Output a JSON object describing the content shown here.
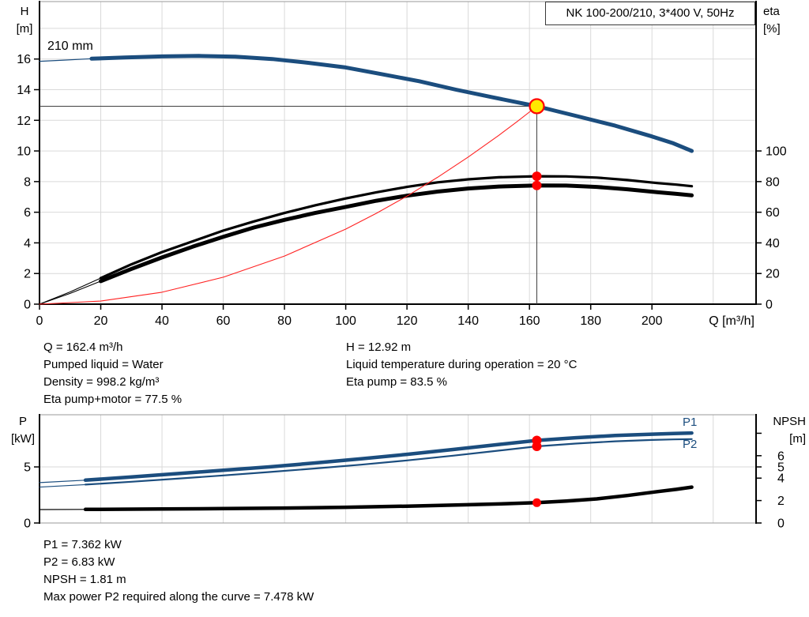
{
  "title_box": {
    "text": "NK 100-200/210, 3*400 V, 50Hz"
  },
  "colors": {
    "blue": "#1b4d7e",
    "black": "#000000",
    "red": "#ff2222",
    "marker_red": "#ff0000",
    "marker_yellow": "#ffe800",
    "grid": "#d9d9d9",
    "frame": "#999999",
    "axis": "#000000",
    "crosshair": "#3f3f3f"
  },
  "axis_titles": {
    "top_left": [
      "H",
      "[m]"
    ],
    "top_right": [
      "eta",
      "[%]"
    ],
    "bottom_left": [
      "P",
      "[kW]"
    ],
    "bottom_right": [
      "NPSH",
      "[m]"
    ]
  },
  "curve_labels": {
    "impeller": "210 mm",
    "p1": "P1",
    "p2": "P2"
  },
  "info_top": {
    "col1": [
      "Q = 162.4 m³/h",
      "Pumped liquid = Water",
      "Density = 998.2 kg/m³",
      "Eta pump+motor = 77.5 %"
    ],
    "col2": [
      "H = 12.92 m",
      "Liquid temperature during operation = 20 °C",
      "Eta pump = 83.5 %"
    ]
  },
  "info_bottom": [
    "P1 = 7.362 kW",
    "P2 = 6.83 kW",
    "NPSH = 1.81 m",
    "Max power P2 required along the curve = 7.478 kW"
  ],
  "chart_data": [
    {
      "name": "qh-eta-chart",
      "type": "line",
      "title": "NK 100-200/210, 3*400 V, 50Hz",
      "xlabel": "Q [m³/h]",
      "ylabel_left": "H [m]",
      "ylabel_right": "eta [%]",
      "xlim": [
        0,
        234
      ],
      "ylim_left": [
        0,
        19.75
      ],
      "ylim_right": [
        0,
        197.5
      ],
      "x_ticks": [
        0,
        20,
        40,
        60,
        80,
        100,
        120,
        140,
        160,
        180,
        200
      ],
      "x_grid": [
        20,
        40,
        60,
        80,
        100,
        120,
        140,
        160,
        180,
        200,
        220
      ],
      "y_ticks_left": [
        0,
        2,
        4,
        6,
        8,
        10,
        12,
        14,
        16
      ],
      "y_ticks_right": [
        0,
        20,
        40,
        60,
        80,
        100
      ],
      "y_tick_right_labels": [
        "0",
        "20",
        "40",
        "60",
        "80",
        "100"
      ],
      "y_grid_left": [
        2,
        4,
        6,
        8,
        10,
        12,
        14,
        16,
        18
      ],
      "black_axes": [
        "left",
        "right",
        "bottom"
      ],
      "grid": true,
      "legend": "curve labels on plot",
      "duty_point": {
        "Q": 162.4,
        "H": 12.92,
        "eta_pump": 83.5,
        "eta_pump_motor": 77.5
      },
      "crosshair": {
        "x": 162.4,
        "y": 12.92
      },
      "series": [
        {
          "name": "head-210mm",
          "axis": "left",
          "color": "blue",
          "width": 5,
          "thin_width": 1.2,
          "thin_until": 17,
          "points": [
            [
              0,
              15.85
            ],
            [
              8,
              15.93
            ],
            [
              17,
              16.02
            ],
            [
              28,
              16.1
            ],
            [
              40,
              16.17
            ],
            [
              52,
              16.2
            ],
            [
              64,
              16.15
            ],
            [
              76,
              16.0
            ],
            [
              88,
              15.75
            ],
            [
              100,
              15.45
            ],
            [
              112,
              15.0
            ],
            [
              124,
              14.55
            ],
            [
              136,
              14.0
            ],
            [
              148,
              13.5
            ],
            [
              162.4,
              12.92
            ],
            [
              175,
              12.3
            ],
            [
              188,
              11.65
            ],
            [
              200,
              10.95
            ],
            [
              207,
              10.5
            ],
            [
              213,
              10.0
            ]
          ]
        },
        {
          "name": "eta-pump",
          "axis": "right",
          "color": "black",
          "width": 3.2,
          "thin_width": 1.1,
          "thin_until": 20,
          "points": [
            [
              0,
              0
            ],
            [
              10,
              8
            ],
            [
              20,
              17
            ],
            [
              30,
              26
            ],
            [
              40,
              34
            ],
            [
              50,
              41
            ],
            [
              60,
              48
            ],
            [
              70,
              54
            ],
            [
              80,
              59.5
            ],
            [
              90,
              64.5
            ],
            [
              100,
              69
            ],
            [
              110,
              73
            ],
            [
              120,
              76.5
            ],
            [
              130,
              79.5
            ],
            [
              140,
              81.5
            ],
            [
              150,
              82.8
            ],
            [
              162.4,
              83.5
            ],
            [
              172,
              83.4
            ],
            [
              182,
              82.6
            ],
            [
              192,
              81
            ],
            [
              202,
              79
            ],
            [
              208,
              78
            ],
            [
              213,
              77
            ]
          ]
        },
        {
          "name": "eta-pump-motor",
          "axis": "right",
          "color": "black",
          "width": 5,
          "thin_width": 1.1,
          "thin_until": 20,
          "points": [
            [
              0,
              0
            ],
            [
              10,
              7
            ],
            [
              20,
              15
            ],
            [
              30,
              23
            ],
            [
              40,
              30.5
            ],
            [
              50,
              37.5
            ],
            [
              60,
              44
            ],
            [
              70,
              50
            ],
            [
              80,
              55
            ],
            [
              90,
              59.5
            ],
            [
              100,
              63.5
            ],
            [
              110,
              67.5
            ],
            [
              120,
              70.8
            ],
            [
              130,
              73.5
            ],
            [
              140,
              75.5
            ],
            [
              150,
              76.8
            ],
            [
              162.4,
              77.5
            ],
            [
              172,
              77.4
            ],
            [
              182,
              76.5
            ],
            [
              192,
              75
            ],
            [
              202,
              73
            ],
            [
              208,
              72
            ],
            [
              213,
              71
            ]
          ]
        },
        {
          "name": "system-curve",
          "axis": "left",
          "color": "red",
          "width": 1.1,
          "thin_width": 1.1,
          "thin_until": -1,
          "points": [
            [
              0,
              0
            ],
            [
              20,
              0.2
            ],
            [
              40,
              0.78
            ],
            [
              60,
              1.76
            ],
            [
              80,
              3.14
            ],
            [
              100,
              4.9
            ],
            [
              110,
              5.93
            ],
            [
              120,
              7.05
            ],
            [
              130,
              8.28
            ],
            [
              140,
              9.6
            ],
            [
              150,
              11.02
            ],
            [
              156,
              11.92
            ],
            [
              162.4,
              12.92
            ]
          ]
        }
      ],
      "markers": [
        {
          "name": "duty-point-marker",
          "x": 162.4,
          "v": 12.92,
          "axis": "left",
          "r": 9,
          "fill": "#ffe800",
          "stroke": "#ff0000",
          "sw": 2.2,
          "interactable": true
        },
        {
          "name": "eta-pump-point",
          "x": 162.4,
          "v": 83.5,
          "axis": "right",
          "r": 6,
          "fill": "#ff0000",
          "interactable": false
        },
        {
          "name": "eta-pump-motor-point",
          "x": 162.4,
          "v": 77.5,
          "axis": "right",
          "r": 6,
          "fill": "#ff0000",
          "interactable": false
        }
      ]
    },
    {
      "name": "power-npsh-chart",
      "type": "line",
      "xlabel": "",
      "ylabel_left": "P [kW]",
      "ylabel_right": "NPSH [m]",
      "xlim": [
        0,
        234
      ],
      "ylim_left": [
        0,
        9.65
      ],
      "ylim_right": [
        0,
        9.65
      ],
      "x_ticks": [],
      "x_grid": [
        20,
        40,
        60,
        80,
        100,
        120,
        140,
        160,
        180,
        200,
        220
      ],
      "y_ticks_left": [
        0,
        5
      ],
      "y_ticks_right": [
        0,
        2,
        4,
        5,
        6,
        8
      ],
      "y_tick_right_labels": [
        "0",
        "2",
        "4",
        "5",
        "6",
        ""
      ],
      "y_grid_left": [
        5
      ],
      "black_axes": [
        "left",
        "right"
      ],
      "grid": true,
      "duty_point": {
        "Q": 162.4,
        "P1": 7.362,
        "P2": 6.83,
        "NPSH": 1.81
      },
      "series": [
        {
          "name": "p1-power",
          "axis": "left",
          "color": "blue",
          "width": 4.5,
          "thin_width": 1.2,
          "thin_until": 15,
          "points": [
            [
              0,
              3.6
            ],
            [
              15,
              3.82
            ],
            [
              30,
              4.1
            ],
            [
              45,
              4.4
            ],
            [
              60,
              4.7
            ],
            [
              75,
              5.0
            ],
            [
              90,
              5.35
            ],
            [
              105,
              5.72
            ],
            [
              120,
              6.12
            ],
            [
              135,
              6.55
            ],
            [
              150,
              7.0
            ],
            [
              162.4,
              7.362
            ],
            [
              175,
              7.6
            ],
            [
              188,
              7.8
            ],
            [
              200,
              7.92
            ],
            [
              207,
              7.98
            ],
            [
              213,
              8.02
            ]
          ]
        },
        {
          "name": "p2-power",
          "axis": "left",
          "color": "blue",
          "width": 2.2,
          "thin_width": 1.1,
          "thin_until": 15,
          "points": [
            [
              0,
              3.2
            ],
            [
              15,
              3.42
            ],
            [
              30,
              3.68
            ],
            [
              45,
              3.95
            ],
            [
              60,
              4.24
            ],
            [
              75,
              4.54
            ],
            [
              90,
              4.86
            ],
            [
              105,
              5.2
            ],
            [
              120,
              5.58
            ],
            [
              135,
              6.0
            ],
            [
              150,
              6.45
            ],
            [
              162.4,
              6.83
            ],
            [
              175,
              7.08
            ],
            [
              188,
              7.28
            ],
            [
              200,
              7.4
            ],
            [
              207,
              7.45
            ],
            [
              213,
              7.478
            ]
          ]
        },
        {
          "name": "npsh",
          "axis": "right",
          "color": "black",
          "width": 4.5,
          "thin_width": 1.2,
          "thin_until": 15,
          "points": [
            [
              0,
              1.2
            ],
            [
              15,
              1.21
            ],
            [
              40,
              1.25
            ],
            [
              60,
              1.28
            ],
            [
              80,
              1.33
            ],
            [
              100,
              1.4
            ],
            [
              120,
              1.5
            ],
            [
              140,
              1.63
            ],
            [
              152,
              1.72
            ],
            [
              162.4,
              1.81
            ],
            [
              172,
              1.95
            ],
            [
              182,
              2.15
            ],
            [
              192,
              2.45
            ],
            [
              202,
              2.8
            ],
            [
              208,
              3.0
            ],
            [
              213,
              3.2
            ]
          ]
        }
      ],
      "markers": [
        {
          "name": "p1-point",
          "x": 162.4,
          "v": 7.362,
          "axis": "left",
          "r": 6,
          "fill": "#ff0000",
          "interactable": false
        },
        {
          "name": "p2-point",
          "x": 162.4,
          "v": 6.83,
          "axis": "left",
          "r": 6,
          "fill": "#ff0000",
          "interactable": false
        },
        {
          "name": "npsh-point",
          "x": 162.4,
          "v": 1.81,
          "axis": "right",
          "r": 5.5,
          "fill": "#ff0000",
          "interactable": false
        }
      ]
    }
  ]
}
